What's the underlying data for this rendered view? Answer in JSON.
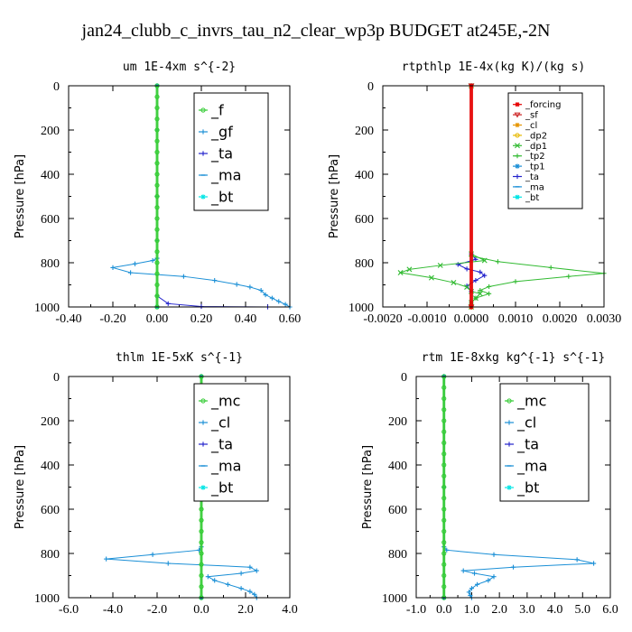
{
  "figure_title": "jan24_clubb_c_invrs_tau_n2_clear_wp3p  BUDGET at245E,-2N",
  "chart_data": [
    {
      "type": "line",
      "title": "um   1E-4xm s^{-2}",
      "ylabel": "Pressure [hPa]",
      "xlim": [
        -0.4,
        0.6
      ],
      "ylim": [
        1000,
        0
      ],
      "x_ticks": [
        "-0.40",
        "-0.20",
        "0.00",
        "0.20",
        "0.40",
        "0.60"
      ],
      "y_ticks": [
        "0",
        "200",
        "400",
        "600",
        "800",
        "1000"
      ],
      "legend_position": "top-right",
      "legend_font": 16,
      "series": [
        {
          "name": "_f",
          "color": "#33cc33",
          "marker": "o",
          "points": [
            [
              0,
              0
            ],
            [
              0,
              50
            ],
            [
              0,
              100
            ],
            [
              0,
              150
            ],
            [
              0,
              200
            ],
            [
              0,
              250
            ],
            [
              0,
              300
            ],
            [
              0,
              350
            ],
            [
              0,
              400
            ],
            [
              0,
              450
            ],
            [
              0,
              500
            ],
            [
              0,
              550
            ],
            [
              0,
              600
            ],
            [
              0,
              650
            ],
            [
              0,
              700
            ],
            [
              0,
              750
            ],
            [
              0,
              800
            ],
            [
              0,
              850
            ],
            [
              0,
              900
            ],
            [
              0,
              950
            ],
            [
              0,
              1000
            ]
          ]
        },
        {
          "name": "_gf",
          "color": "#1a8fd6",
          "marker": "+",
          "points": [
            [
              0,
              0
            ],
            [
              0,
              200
            ],
            [
              0,
              500
            ],
            [
              0,
              700
            ],
            [
              0,
              780
            ],
            [
              -0.02,
              790
            ],
            [
              -0.1,
              805
            ],
            [
              -0.2,
              822
            ],
            [
              -0.12,
              845
            ],
            [
              0.12,
              862
            ],
            [
              0.26,
              880
            ],
            [
              0.36,
              898
            ],
            [
              0.42,
              910
            ],
            [
              0.47,
              925
            ],
            [
              0.49,
              945
            ],
            [
              0.52,
              960
            ],
            [
              0.55,
              975
            ],
            [
              0.58,
              988
            ],
            [
              0.6,
              1000
            ]
          ]
        },
        {
          "name": "_ta",
          "color": "#2222cc",
          "marker": "+",
          "points": [
            [
              0,
              0
            ],
            [
              0,
              500
            ],
            [
              0,
              950
            ],
            [
              0.05,
              985
            ],
            [
              0.2,
              998
            ],
            [
              0.5,
              1000
            ]
          ]
        },
        {
          "name": "_ma",
          "color": "#1a8fd6",
          "marker": "-",
          "points": [
            [
              0,
              0
            ],
            [
              0,
              1000
            ]
          ]
        },
        {
          "name": "_bt",
          "color": "#00e5e5",
          "marker": "*",
          "points": [
            [
              0,
              0
            ],
            [
              0,
              1000
            ]
          ]
        }
      ]
    },
    {
      "type": "line",
      "title": "rtpthlp   1E-4x(kg K)/(kg s)",
      "ylabel": "Pressure [hPa]",
      "xlim": [
        -0.002,
        0.003
      ],
      "ylim": [
        1000,
        0
      ],
      "x_ticks": [
        "-0.0020",
        "-0.0010",
        "0.0000",
        "0.0010",
        "0.0020",
        "0.0030"
      ],
      "y_ticks": [
        "0",
        "200",
        "400",
        "600",
        "800",
        "1000"
      ],
      "legend_position": "top-right",
      "legend_font": 10,
      "series": [
        {
          "name": "_forcing",
          "color": "#e60000",
          "marker": "*",
          "points": [
            [
              0,
              0
            ],
            [
              0,
              1000
            ]
          ]
        },
        {
          "name": "_sf",
          "color": "#cc2222",
          "marker": "v",
          "points": [
            [
              0,
              0
            ],
            [
              0,
              1000
            ]
          ]
        },
        {
          "name": "_cl",
          "color": "#e69500",
          "marker": "*",
          "points": [
            [
              0,
              0
            ],
            [
              0,
              1000
            ]
          ]
        },
        {
          "name": "_dp2",
          "color": "#e6b800",
          "marker": "o",
          "points": [
            [
              0,
              0
            ],
            [
              0,
              1000
            ]
          ]
        },
        {
          "name": "_dp1",
          "color": "#33bb33",
          "marker": "x",
          "points": [
            [
              0,
              0
            ],
            [
              0,
              760
            ],
            [
              0.0003,
              790
            ],
            [
              -0.0007,
              812
            ],
            [
              -0.0014,
              830
            ],
            [
              -0.0016,
              845
            ],
            [
              -0.0009,
              868
            ],
            [
              -0.0004,
              890
            ],
            [
              -0.0001,
              910
            ],
            [
              0,
              930
            ],
            [
              0.0002,
              940
            ],
            [
              0.0001,
              960
            ],
            [
              0,
              980
            ],
            [
              0,
              1000
            ]
          ]
        },
        {
          "name": "_tp2",
          "color": "#33bb33",
          "marker": "+",
          "points": [
            [
              0,
              0
            ],
            [
              0,
              770
            ],
            [
              0.0006,
              795
            ],
            [
              0.0018,
              822
            ],
            [
              0.003,
              848
            ],
            [
              0.0022,
              862
            ],
            [
              0.001,
              885
            ],
            [
              0.0004,
              908
            ],
            [
              0.0002,
              925
            ],
            [
              0.0004,
              940
            ],
            [
              0.0001,
              960
            ],
            [
              0,
              980
            ],
            [
              0,
              1000
            ]
          ]
        },
        {
          "name": "_tp1",
          "color": "#1a8fd6",
          "marker": "*",
          "points": [
            [
              0,
              0
            ],
            [
              0,
              1000
            ]
          ]
        },
        {
          "name": "_ta",
          "color": "#2222cc",
          "marker": "+",
          "points": [
            [
              0,
              0
            ],
            [
              0,
              760
            ],
            [
              0.0001,
              785
            ],
            [
              -0.0003,
              808
            ],
            [
              -0.0001,
              828
            ],
            [
              0.0002,
              842
            ],
            [
              0.0003,
              858
            ],
            [
              0.0001,
              880
            ],
            [
              -0.0001,
              905
            ],
            [
              0,
              930
            ],
            [
              0,
              1000
            ]
          ]
        },
        {
          "name": "_ma",
          "color": "#1a8fd6",
          "marker": "-",
          "points": [
            [
              0,
              0
            ],
            [
              0,
              1000
            ]
          ]
        },
        {
          "name": "_bt",
          "color": "#00e5e5",
          "marker": "*",
          "points": [
            [
              0,
              0
            ],
            [
              0,
              1000
            ]
          ]
        }
      ]
    },
    {
      "type": "line",
      "title": "thlm   1E-5xK s^{-1}",
      "ylabel": "Pressure [hPa]",
      "xlim": [
        -6,
        4
      ],
      "ylim": [
        1000,
        0
      ],
      "x_ticks": [
        "-6.0",
        "-4.0",
        "-2.0",
        "0.0",
        "2.0",
        "4.0"
      ],
      "y_ticks": [
        "0",
        "200",
        "400",
        "600",
        "800",
        "1000"
      ],
      "legend_position": "top-right",
      "legend_font": 16,
      "series": [
        {
          "name": "_mc",
          "color": "#33cc33",
          "marker": "o",
          "points": [
            [
              0,
              0
            ],
            [
              0,
              50
            ],
            [
              0,
              100
            ],
            [
              0,
              150
            ],
            [
              0,
              200
            ],
            [
              0,
              250
            ],
            [
              0,
              300
            ],
            [
              0,
              350
            ],
            [
              0,
              400
            ],
            [
              0,
              450
            ],
            [
              0,
              500
            ],
            [
              0,
              550
            ],
            [
              0,
              600
            ],
            [
              0,
              650
            ],
            [
              0,
              700
            ],
            [
              0,
              750
            ],
            [
              0,
              800
            ],
            [
              0,
              850
            ],
            [
              0,
              900
            ],
            [
              0,
              950
            ],
            [
              0,
              1000
            ]
          ]
        },
        {
          "name": "_cl",
          "color": "#1a8fd6",
          "marker": "+",
          "points": [
            [
              0,
              0
            ],
            [
              0,
              500
            ],
            [
              0,
              770
            ],
            [
              -0.1,
              785
            ],
            [
              -2.2,
              805
            ],
            [
              -4.3,
              825
            ],
            [
              -1.5,
              845
            ],
            [
              2.2,
              862
            ],
            [
              2.5,
              878
            ],
            [
              1.8,
              890
            ],
            [
              0.3,
              905
            ],
            [
              0.6,
              922
            ],
            [
              1.2,
              940
            ],
            [
              1.8,
              958
            ],
            [
              2.2,
              972
            ],
            [
              2.4,
              985
            ],
            [
              2.5,
              1000
            ]
          ]
        },
        {
          "name": "_ta",
          "color": "#2222cc",
          "marker": "+",
          "points": [
            [
              0,
              0
            ],
            [
              0,
              1000
            ]
          ]
        },
        {
          "name": "_ma",
          "color": "#1a8fd6",
          "marker": "-",
          "points": [
            [
              0,
              0
            ],
            [
              0,
              1000
            ]
          ]
        },
        {
          "name": "_bt",
          "color": "#00e5e5",
          "marker": "*",
          "points": [
            [
              0,
              0
            ],
            [
              0,
              1000
            ]
          ]
        }
      ]
    },
    {
      "type": "line",
      "title": "rtm   1E-8xkg kg^{-1} s^{-1}",
      "ylabel": "Pressure [hPa]",
      "xlim": [
        -1,
        6
      ],
      "ylim": [
        1000,
        0
      ],
      "x_ticks": [
        "-1.0",
        "0.0",
        "1.0",
        "2.0",
        "3.0",
        "4.0",
        "5.0",
        "6.0"
      ],
      "y_ticks": [
        "0",
        "200",
        "400",
        "600",
        "800",
        "1000"
      ],
      "legend_position": "top-right",
      "legend_font": 16,
      "series": [
        {
          "name": "_mc",
          "color": "#33cc33",
          "marker": "o",
          "points": [
            [
              0,
              0
            ],
            [
              0,
              50
            ],
            [
              0,
              100
            ],
            [
              0,
              150
            ],
            [
              0,
              200
            ],
            [
              0,
              250
            ],
            [
              0,
              300
            ],
            [
              0,
              350
            ],
            [
              0,
              400
            ],
            [
              0,
              450
            ],
            [
              0,
              500
            ],
            [
              0,
              550
            ],
            [
              0,
              600
            ],
            [
              0,
              650
            ],
            [
              0,
              700
            ],
            [
              0,
              750
            ],
            [
              0,
              800
            ],
            [
              0,
              850
            ],
            [
              0,
              900
            ],
            [
              0,
              950
            ],
            [
              0,
              1000
            ]
          ]
        },
        {
          "name": "_cl",
          "color": "#1a8fd6",
          "marker": "+",
          "points": [
            [
              0,
              0
            ],
            [
              0,
              500
            ],
            [
              0,
              770
            ],
            [
              0.1,
              785
            ],
            [
              1.8,
              805
            ],
            [
              4.8,
              828
            ],
            [
              5.4,
              845
            ],
            [
              2.5,
              862
            ],
            [
              0.7,
              878
            ],
            [
              1.1,
              890
            ],
            [
              1.8,
              905
            ],
            [
              1.6,
              922
            ],
            [
              1.2,
              940
            ],
            [
              1.0,
              958
            ],
            [
              0.9,
              975
            ],
            [
              0.95,
              990
            ],
            [
              1.0,
              1000
            ]
          ]
        },
        {
          "name": "_ta",
          "color": "#2222cc",
          "marker": "+",
          "points": [
            [
              0,
              0
            ],
            [
              0,
              1000
            ]
          ]
        },
        {
          "name": "_ma",
          "color": "#1a8fd6",
          "marker": "-",
          "points": [
            [
              0,
              0
            ],
            [
              0,
              1000
            ]
          ]
        },
        {
          "name": "_bt",
          "color": "#00e5e5",
          "marker": "*",
          "points": [
            [
              0,
              0
            ],
            [
              0,
              1000
            ]
          ]
        }
      ]
    }
  ]
}
